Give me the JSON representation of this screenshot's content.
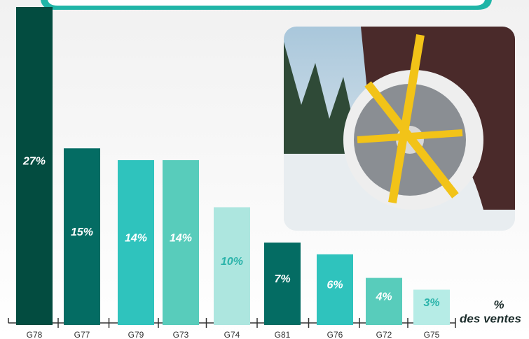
{
  "chart_data": {
    "type": "bar",
    "categories": [
      "G78",
      "G77",
      "G79",
      "G73",
      "G74",
      "G81",
      "G76",
      "G72",
      "G75"
    ],
    "values": [
      27,
      15,
      14,
      14,
      10,
      7,
      6,
      4,
      3
    ],
    "value_labels": [
      "27%",
      "15%",
      "14%",
      "14%",
      "10%",
      "7%",
      "6%",
      "4%",
      "3%"
    ],
    "colors": [
      "#034c40",
      "#046c63",
      "#2fc3bd",
      "#58ccbb",
      "#ade6df",
      "#046c63",
      "#2fc3bd",
      "#58ccbb",
      "#b6ece6"
    ],
    "value_label_colors": [
      "#ffffff",
      "#ffffff",
      "#ffffff",
      "#ffffff",
      "#2ab3aa",
      "#ffffff",
      "#ffffff",
      "#ffffff",
      "#2ab3aa"
    ],
    "axis_label": [
      "%",
      "des ventes"
    ]
  }
}
